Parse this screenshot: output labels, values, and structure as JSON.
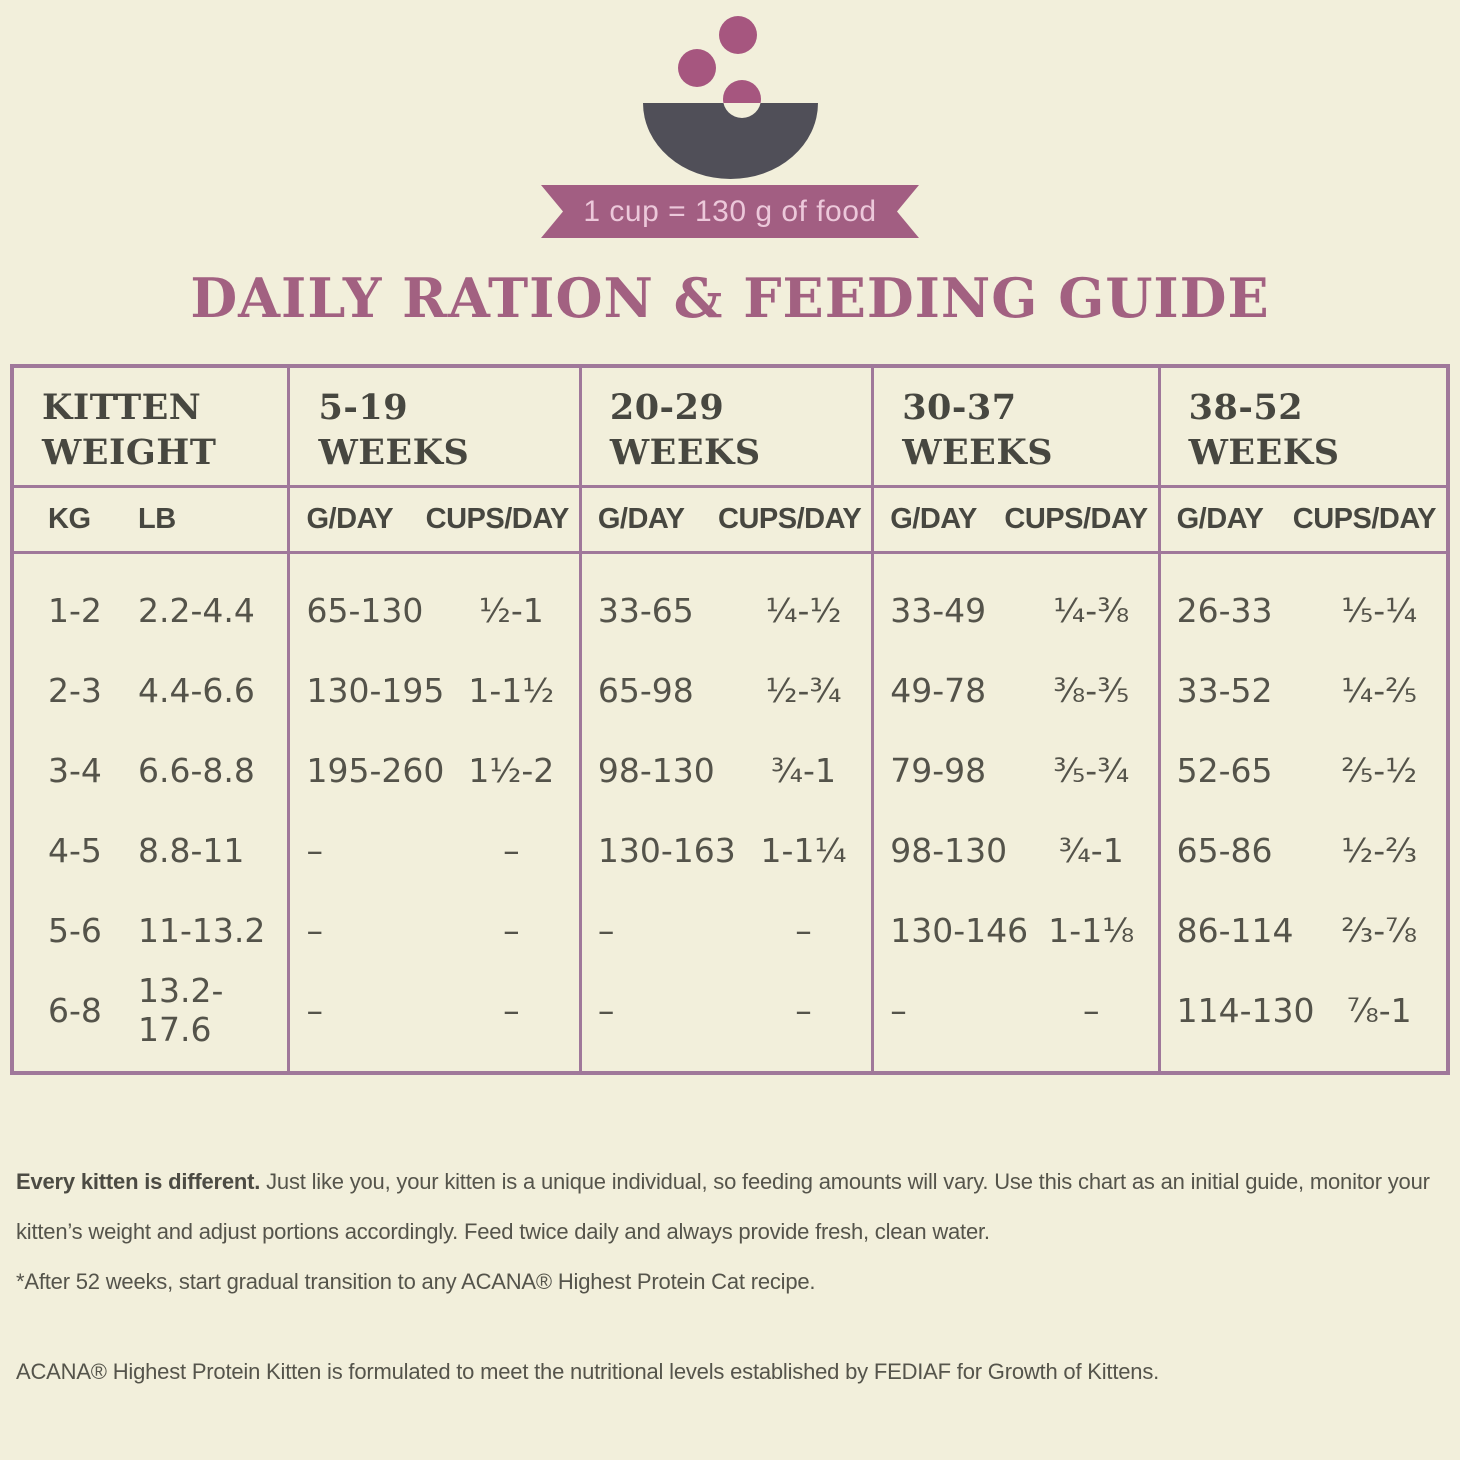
{
  "banner": {
    "text": "1 cup = 130 g of food"
  },
  "title": "DAILY RATION & FEEDING GUIDE",
  "colors": {
    "background": "#f2efdb",
    "plum": "#a25e82",
    "title_plum": "#a26181",
    "table_border": "#a0789a",
    "header_ink": "#474740",
    "body_ink": "#54534a",
    "bowl_gray": "#504f58"
  },
  "table": {
    "weight_header": {
      "line1": "KITTEN",
      "line2": "WEIGHT"
    },
    "week_headers": [
      {
        "line1": "5-19",
        "line2": "WEEKS"
      },
      {
        "line1": "20-29",
        "line2": "WEEKS"
      },
      {
        "line1": "30-37",
        "line2": "WEEKS"
      },
      {
        "line1": "38-52",
        "line2": "WEEKS"
      }
    ],
    "sub_headers": {
      "kg": "KG",
      "lb": "LB",
      "g_day": "G/DAY",
      "cups_day": "CUPS/DAY"
    },
    "rows": [
      {
        "kg": "1-2",
        "lb": "2.2-4.4",
        "c1g": "65-130",
        "c1c": "½-1",
        "c2g": "33-65",
        "c2c": "¼-½",
        "c3g": "33-49",
        "c3c": "¼-⅜",
        "c4g": "26-33",
        "c4c": "⅕-¼"
      },
      {
        "kg": "2-3",
        "lb": "4.4-6.6",
        "c1g": "130-195",
        "c1c": "1-1½",
        "c2g": "65-98",
        "c2c": "½-¾",
        "c3g": "49-78",
        "c3c": "⅜-⅗",
        "c4g": "33-52",
        "c4c": "¼-⅖"
      },
      {
        "kg": "3-4",
        "lb": "6.6-8.8",
        "c1g": "195-260",
        "c1c": "1½-2",
        "c2g": "98-130",
        "c2c": "¾-1",
        "c3g": "79-98",
        "c3c": "⅗-¾",
        "c4g": "52-65",
        "c4c": "⅖-½"
      },
      {
        "kg": "4-5",
        "lb": "8.8-11",
        "c1g": "–",
        "c1c": "–",
        "c2g": "130-163",
        "c2c": "1-1¼",
        "c3g": "98-130",
        "c3c": "¾-1",
        "c4g": "65-86",
        "c4c": "½-⅔"
      },
      {
        "kg": "5-6",
        "lb": "11-13.2",
        "c1g": "–",
        "c1c": "–",
        "c2g": "–",
        "c2c": "–",
        "c3g": "130-146",
        "c3c": "1-1⅛",
        "c4g": "86-114",
        "c4c": "⅔-⅞"
      },
      {
        "kg": "6-8",
        "lb": "13.2-17.6",
        "c1g": "–",
        "c1c": "–",
        "c2g": "–",
        "c2c": "–",
        "c3g": "–",
        "c3c": "–",
        "c4g": "114-130",
        "c4c": "⅞-1"
      }
    ]
  },
  "footer": {
    "lead_bold": "Every kitten is different.",
    "lead_rest": " Just like you, your kitten is a unique individual, so feeding amounts will vary. Use this chart as an initial guide, monitor your kitten’s weight and adjust portions accordingly. Feed twice daily and always provide fresh, clean water.",
    "transition_note": "*After 52 weeks, start gradual transition to any ACANA® Highest Protein Cat recipe.",
    "fediaf_note": "ACANA® Highest Protein Kitten is formulated to meet the nutritional levels established by FEDIAF  for Growth of Kittens."
  }
}
